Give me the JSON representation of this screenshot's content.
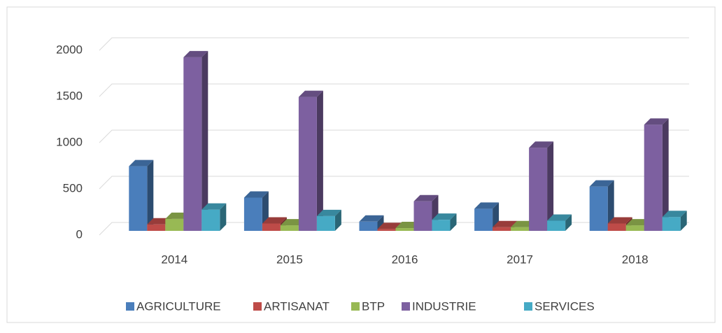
{
  "chart_data": {
    "type": "bar3d",
    "categories": [
      "2014",
      "2015",
      "2016",
      "2017",
      "2018"
    ],
    "series": [
      {
        "name": "AGRICULTURE",
        "color": "#4a7ebb",
        "values": [
          700,
          360,
          100,
          240,
          480
        ]
      },
      {
        "name": "ARTISANAT",
        "color": "#be4b48",
        "values": [
          70,
          80,
          20,
          40,
          80
        ]
      },
      {
        "name": "BTP",
        "color": "#98b954",
        "values": [
          130,
          60,
          30,
          40,
          60
        ]
      },
      {
        "name": "INDUSTRIE",
        "color": "#7d60a0",
        "values": [
          1880,
          1450,
          320,
          900,
          1150
        ]
      },
      {
        "name": "SERVICES",
        "color": "#46aac5",
        "values": [
          230,
          160,
          120,
          110,
          150
        ]
      }
    ],
    "ylim": [
      0,
      2000
    ],
    "yticks": [
      0,
      500,
      1000,
      1500,
      2000
    ],
    "grid": true,
    "legend": "bottom"
  }
}
